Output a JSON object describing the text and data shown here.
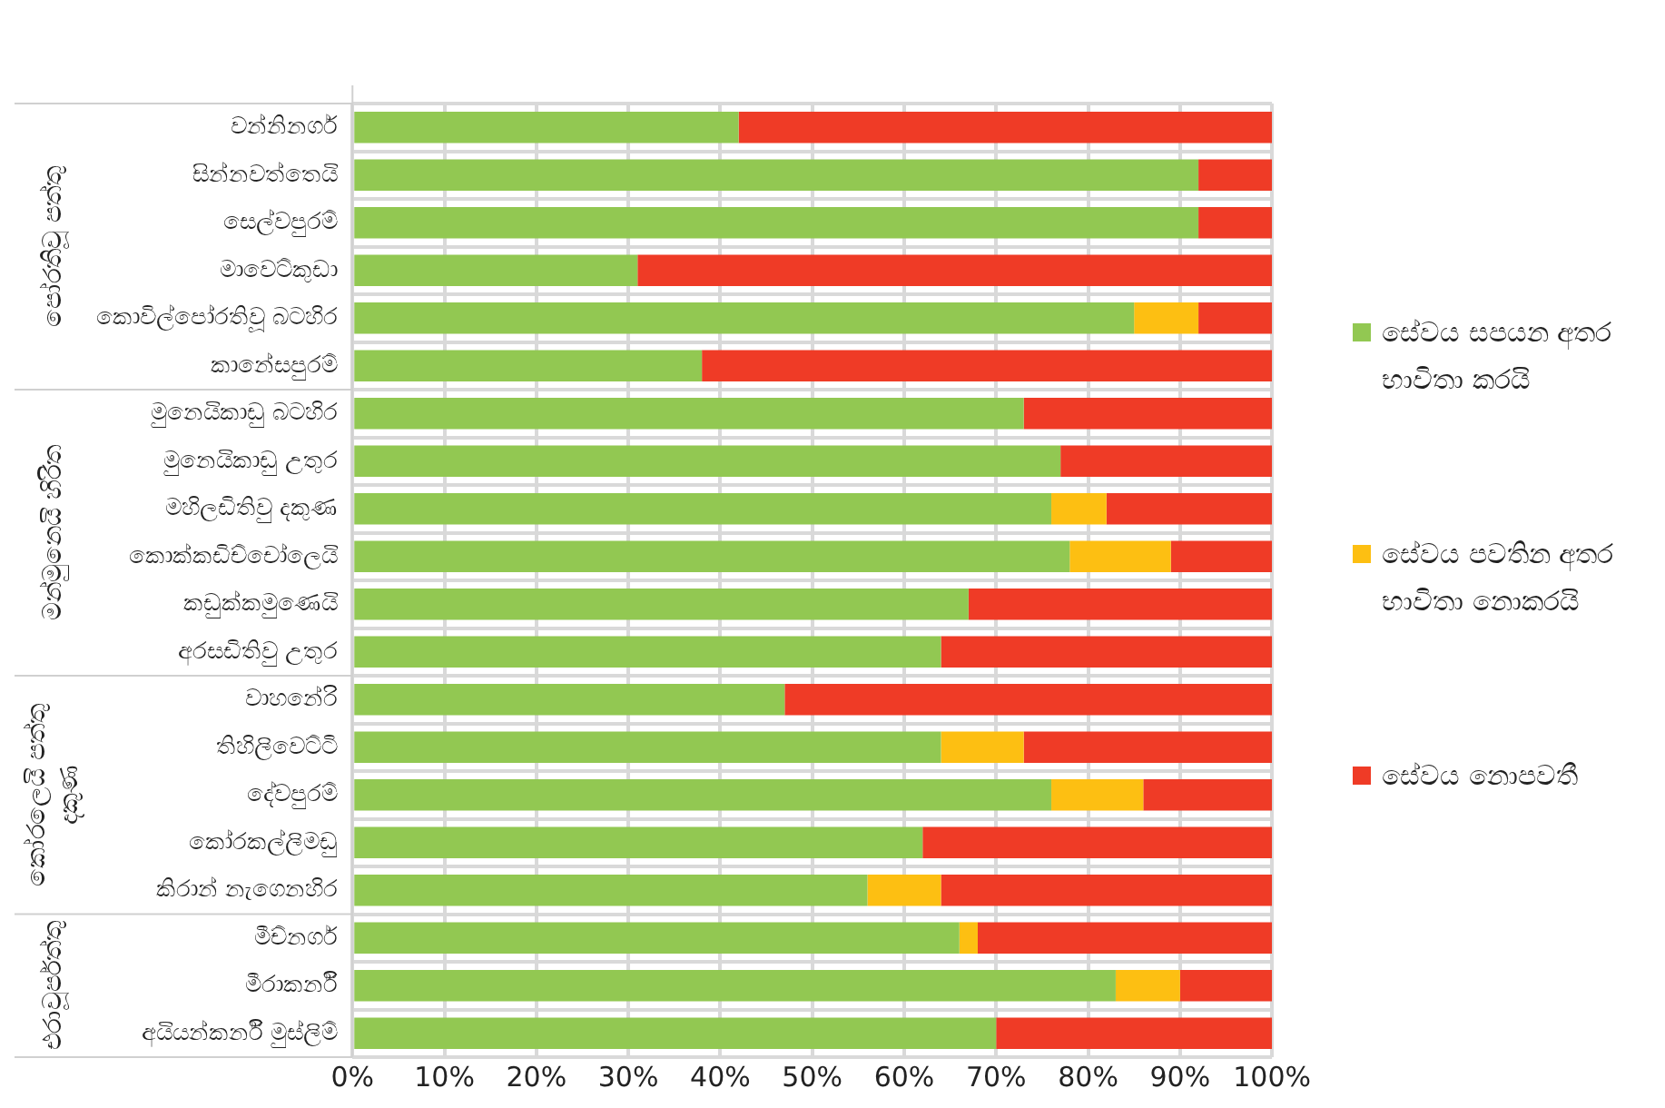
{
  "chart_data": {
    "type": "bar",
    "orientation": "horizontal",
    "stacked": true,
    "categories": [
      "වන්නිනගර්",
      "සින්නවත්තෙයි",
      "සෙල්වපුරම්",
      "මාවෙට්කුඩා",
      "කොවිල්පෝරතිවූ බටහිර",
      "කානේසපුරම්",
      "මුනෙයිකාඩු බටහිර",
      "මුනෙයිකාඩු උතුර",
      "මහිලඩිතිවු දකුණ",
      "කොක්කඩිච්චෝලෙයි",
      "කඩුක්කමුණෙයි",
      "අරසඩිතිවු උතුර",
      "වාහනේරි",
      "තිහිලිවෙට්ටි",
      "දේවපුරම්",
      "කෝරකල්ලිමඩු",
      "කිරාන් නැගෙනහිර",
      "මීච්නගර්",
      "මීරාකර්නි",
      "අයියන්කර්නි මුස්ලිම්"
    ],
    "series": [
      {
        "name": "සේවය සපයන අතර භාවිතා කරයි",
        "color": "#92c852",
        "values": [
          42,
          92,
          92,
          31,
          85,
          38,
          73,
          77,
          76,
          78,
          67,
          64,
          47,
          64,
          76,
          62,
          56,
          66,
          83,
          70
        ]
      },
      {
        "name": "සේවය පවතින අතර භාවිතා නොකරයි",
        "color": "#fdbf12",
        "values": [
          0,
          0,
          0,
          0,
          7,
          0,
          0,
          0,
          6,
          11,
          0,
          0,
          0,
          9,
          10,
          0,
          8,
          2,
          7,
          0
        ]
      },
      {
        "name": "සේවය නොපවතී",
        "color": "#ef3b26",
        "values": [
          58,
          8,
          8,
          69,
          8,
          62,
          27,
          23,
          18,
          11,
          33,
          36,
          53,
          27,
          14,
          38,
          36,
          32,
          10,
          30
        ]
      }
    ],
    "xlim": [
      0,
      100
    ],
    "xticks": [
      {
        "value": 0,
        "label": "0%"
      },
      {
        "value": 10,
        "label": "10%"
      },
      {
        "value": 20,
        "label": "20%"
      },
      {
        "value": 30,
        "label": "30%"
      },
      {
        "value": 40,
        "label": "40%"
      },
      {
        "value": 50,
        "label": "50%"
      },
      {
        "value": 60,
        "label": "60%"
      },
      {
        "value": 70,
        "label": "70%"
      },
      {
        "value": 80,
        "label": "80%"
      },
      {
        "value": 90,
        "label": "90%"
      },
      {
        "value": 100,
        "label": "100%"
      }
    ],
    "grid": true,
    "legend": "right",
    "annotations": [
      "පෝරතිවූ පත්තු",
      "මන්මුනෙයි හිරිත",
      "කෝරලෙයි පත්තු දකුණ",
      "එරාවූර්පත්තු"
    ]
  }
}
